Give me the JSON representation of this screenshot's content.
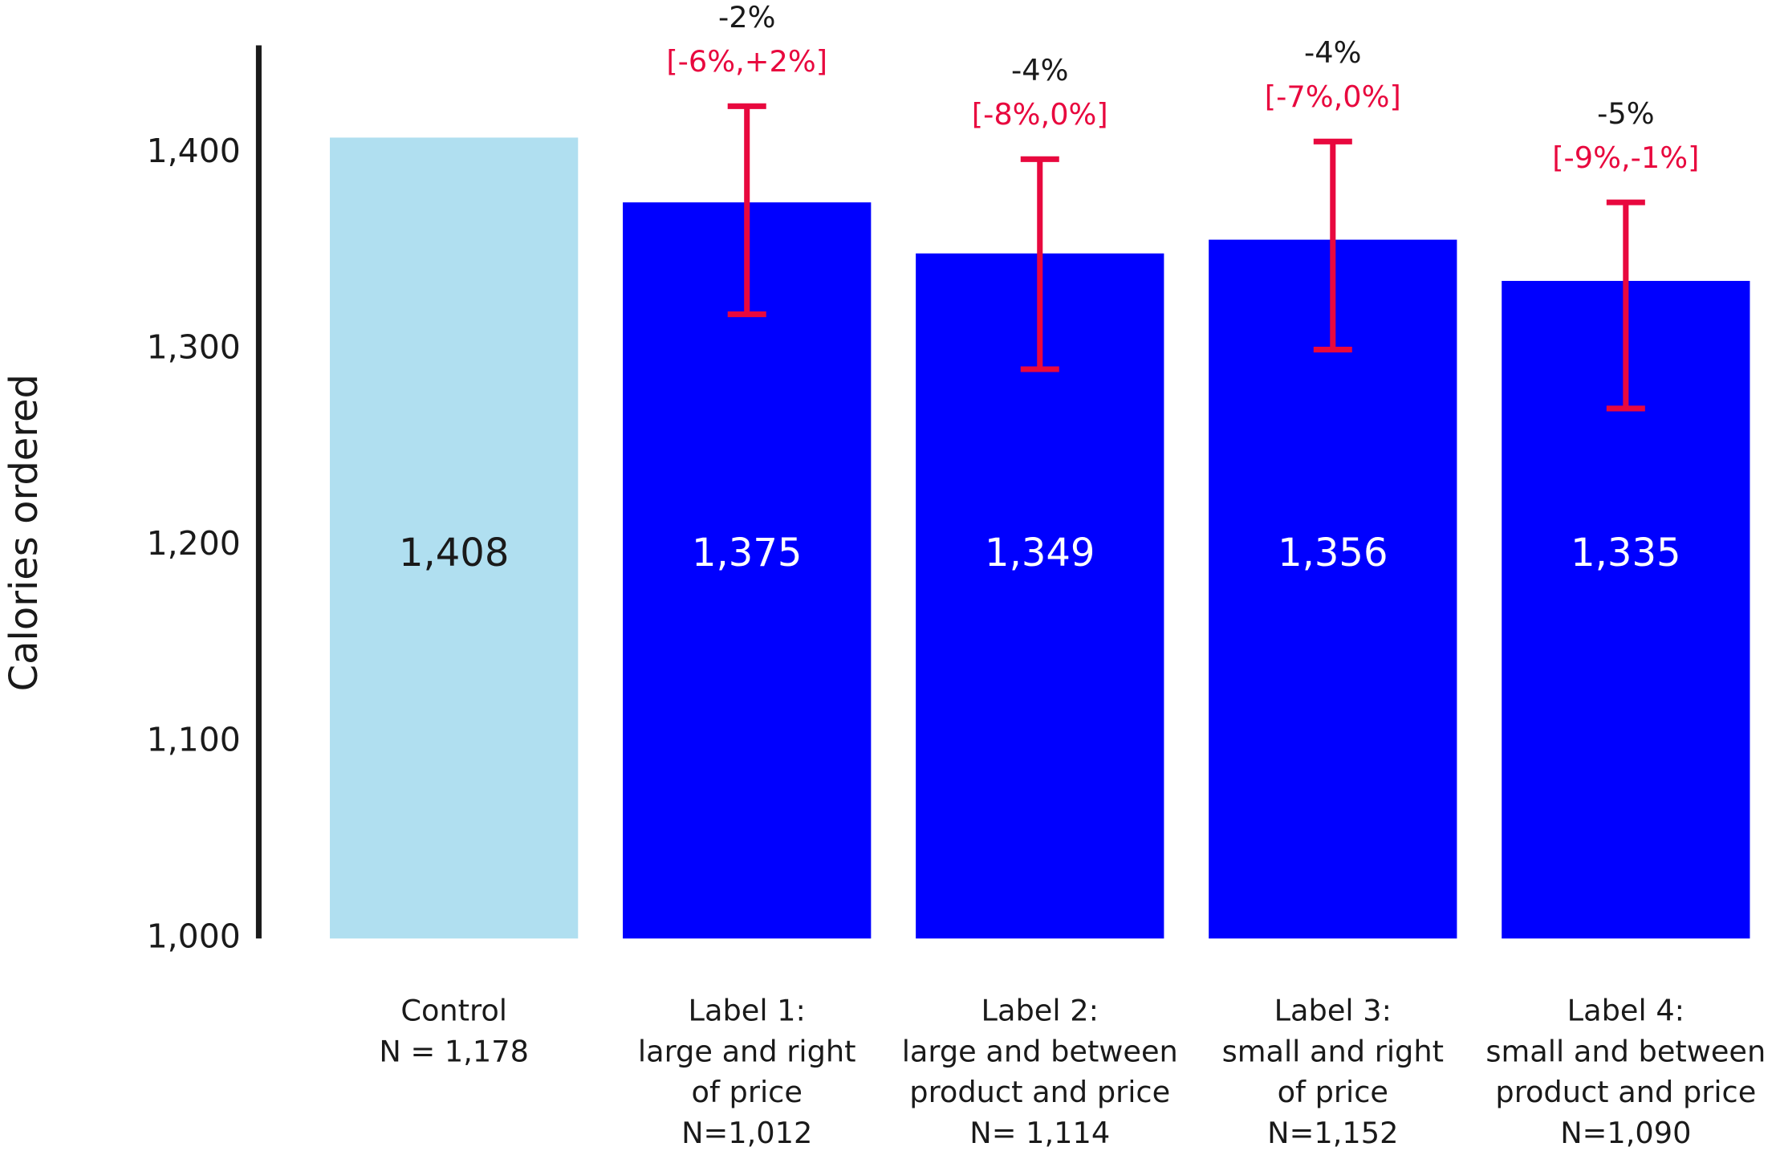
{
  "chart_data": {
    "type": "bar",
    "y_label": "Calories ordered",
    "categories": [
      [
        "Control",
        "N = 1,178"
      ],
      [
        "Label 1:",
        "large and right",
        "of price",
        "N=1,012"
      ],
      [
        "Label 2:",
        "large and between",
        "product and price",
        "N= 1,114"
      ],
      [
        "Label 3:",
        "small and right",
        "of price",
        "N=1,152"
      ],
      [
        "Label 4:",
        "small and between",
        "product and price",
        "N=1,090"
      ]
    ],
    "values": [
      1408,
      1375,
      1349,
      1356,
      1335
    ],
    "value_labels": [
      "1,408",
      "1,375",
      "1,349",
      "1,356",
      "1,335"
    ],
    "colors": [
      "#b0dff0",
      "#0000ff",
      "#0000ff",
      "#0000ff",
      "#0000ff"
    ],
    "error_low": [
      null,
      1318,
      1290,
      1300,
      1270
    ],
    "error_high": [
      null,
      1424,
      1397,
      1406,
      1375
    ],
    "error_color": "#e8083e",
    "changes": [
      null,
      "-2%",
      "-4%",
      "-4%",
      "-5%"
    ],
    "intervals": [
      null,
      "[-6%,+2%]",
      "[-8%,0%]",
      "[-7%,0%]",
      "[-9%,-1%]"
    ],
    "ylim": [
      1000,
      1455
    ],
    "yticks": [
      {
        "value": 1000,
        "label": "1,000"
      },
      {
        "value": 1100,
        "label": "1,100"
      },
      {
        "value": 1200,
        "label": "1,200"
      },
      {
        "value": 1300,
        "label": "1,300"
      },
      {
        "value": 1400,
        "label": "1,400"
      }
    ],
    "grid": false
  }
}
